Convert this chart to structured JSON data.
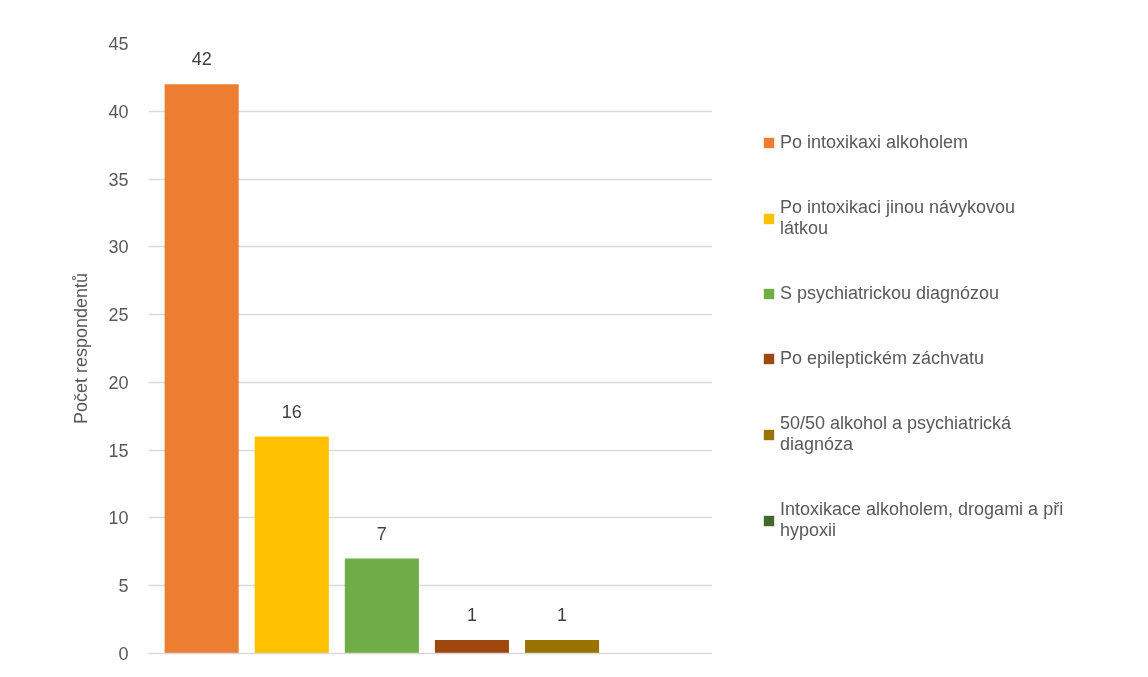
{
  "chart_data": {
    "type": "bar",
    "ylabel": "Počet respondentů",
    "categories": [
      null
    ],
    "series": [
      {
        "name": "Po intoxikaxi alkoholem",
        "color": "#ed7d31",
        "values": [
          42
        ]
      },
      {
        "name": "Po intoxikaci jinou návykovou látkou",
        "color": "#ffc000",
        "values": [
          16
        ]
      },
      {
        "name": "S psychiatrickou diagnózou",
        "color": "#70ad47",
        "values": [
          7
        ]
      },
      {
        "name": "Po epileptickém záchvatu",
        "color": "#9e480e",
        "values": [
          1
        ]
      },
      {
        "name": "50/50 alkohol a psychiatrická diagnóza",
        "color": "#997300",
        "values": [
          1
        ]
      },
      {
        "name": "Intoxikace alkoholem, drogami a při hypoxii",
        "color": "#43682b",
        "values": [
          null
        ]
      }
    ],
    "ylim": [
      0,
      45
    ],
    "yticks": [
      0,
      5,
      10,
      15,
      20,
      25,
      30,
      35,
      40,
      45
    ],
    "grid": "y",
    "legend": "right",
    "tick_labels": "y",
    "data_labels": true
  }
}
